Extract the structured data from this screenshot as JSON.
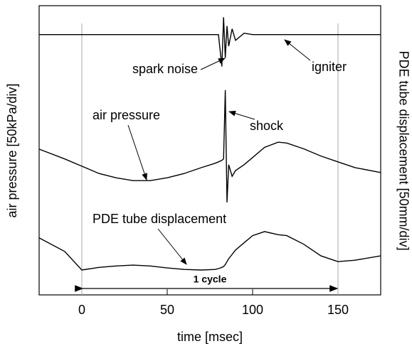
{
  "chart_data": {
    "type": "line",
    "xlabel": "time [msec]",
    "ylabel": "air pressure [50kPa/div]",
    "y2label": "PDE tube displacement [50mm/div]",
    "xlim": [
      -25,
      175
    ],
    "xticks": [
      0,
      50,
      100,
      150
    ],
    "ylim": [
      0,
      100
    ],
    "x": [
      -25,
      -10,
      0,
      10,
      20,
      30,
      40,
      50,
      60,
      70,
      78,
      80,
      82,
      83,
      84,
      85,
      86,
      88,
      90,
      95,
      100,
      107,
      115,
      120,
      130,
      140,
      150,
      160,
      175
    ],
    "series": [
      {
        "name": "igniter",
        "color": "#000000",
        "values": [
          90,
          90,
          90,
          90,
          90,
          90,
          90,
          90,
          90,
          90,
          90,
          90,
          79,
          96,
          82,
          93,
          86,
          92,
          88,
          90.5,
          90,
          90,
          90,
          90,
          90,
          90,
          90,
          90,
          90
        ]
      },
      {
        "name": "air pressure",
        "color": "#000000",
        "values": [
          50.4,
          47,
          44.5,
          42,
          40.5,
          39.5,
          39.5,
          40.5,
          42,
          44,
          45.5,
          46,
          46.5,
          47,
          70.8,
          32,
          45,
          41,
          43,
          45,
          47.5,
          51,
          52.8,
          52.5,
          50.5,
          48,
          46,
          44,
          42.3
        ]
      },
      {
        "name": "PDE tube displacement",
        "color": "#000000",
        "values": [
          19.7,
          15,
          8.6,
          9.5,
          10,
          10.3,
          10,
          9.3,
          8.8,
          8.6,
          8.8,
          9.1,
          9.5,
          9.8,
          10.5,
          11.5,
          12.5,
          14,
          15.5,
          18,
          20.5,
          21.9,
          20.8,
          20.5,
          17.5,
          13.5,
          11.5,
          12,
          13.5
        ]
      }
    ],
    "annotations": [
      "spark noise",
      "igniter",
      "air pressure",
      "shock"
    ],
    "cycle": {
      "label": "1 cycle",
      "start": 0,
      "end": 150
    }
  }
}
